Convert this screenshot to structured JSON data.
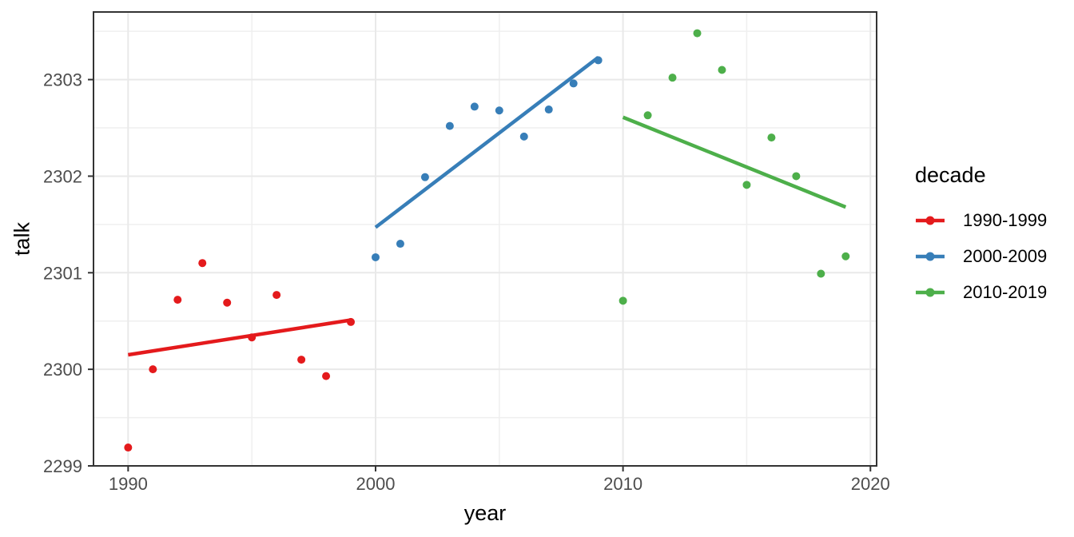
{
  "chart_data": {
    "type": "scatter",
    "title": "",
    "xlabel": "year",
    "ylabel": "talk",
    "xlim": [
      1988.6,
      2020.25
    ],
    "ylim": [
      2299.0,
      2303.7
    ],
    "x_ticks": [
      1990,
      2000,
      2010,
      2020
    ],
    "x_minor_ticks": [
      1995,
      2005,
      2015
    ],
    "y_ticks": [
      2299,
      2300,
      2301,
      2302,
      2303
    ],
    "y_minor_ticks": [
      2299.5,
      2300.5,
      2301.5,
      2302.5,
      2303.5
    ],
    "grid": "on",
    "legend": {
      "title": "decade",
      "position": "right"
    },
    "colors": {
      "background": "#ffffff",
      "panel_background": "#ffffff",
      "grid_major": "#e9e9e9",
      "grid_minor": "#efefef",
      "panel_border": "#333333",
      "tick": "#333333",
      "tick_label": "#4d4d4d",
      "axis_title": "#000000"
    },
    "series": [
      {
        "name": "1990-1999",
        "color": "#E41A1C",
        "x": [
          1990,
          1991,
          1992,
          1993,
          1994,
          1995,
          1996,
          1997,
          1998,
          1999
        ],
        "y": [
          2299.19,
          2300.0,
          2300.72,
          2301.1,
          2300.69,
          2300.33,
          2300.77,
          2300.1,
          2299.93,
          2300.49
        ],
        "trend": {
          "x": [
            1990,
            1999
          ],
          "y": [
            2300.15,
            2300.51
          ]
        }
      },
      {
        "name": "2000-2009",
        "color": "#377EB8",
        "x": [
          2000,
          2001,
          2002,
          2003,
          2004,
          2005,
          2006,
          2007,
          2008,
          2009
        ],
        "y": [
          2301.16,
          2301.3,
          2301.99,
          2302.52,
          2302.72,
          2302.68,
          2302.41,
          2302.69,
          2302.96,
          2303.2
        ],
        "trend": {
          "x": [
            2000,
            2009
          ],
          "y": [
            2301.47,
            2303.23
          ]
        }
      },
      {
        "name": "2010-2019",
        "color": "#4DAF4A",
        "x": [
          2010,
          2011,
          2012,
          2013,
          2014,
          2015,
          2016,
          2017,
          2018,
          2019
        ],
        "y": [
          2300.71,
          2302.63,
          2303.02,
          2303.48,
          2303.1,
          2301.91,
          2302.4,
          2302.0,
          2300.99,
          2301.17
        ],
        "trend": {
          "x": [
            2010,
            2019
          ],
          "y": [
            2302.61,
            2301.68
          ]
        }
      }
    ]
  }
}
